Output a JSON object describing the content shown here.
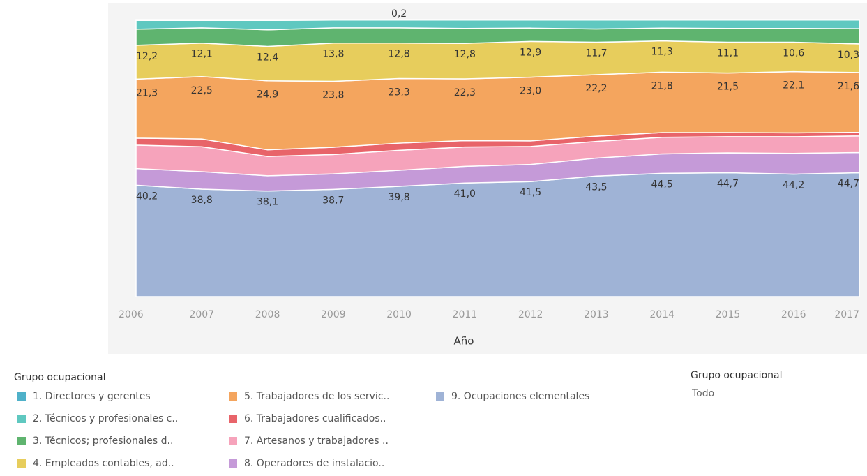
{
  "chart_data": {
    "type": "stacked_area",
    "x_label": "Año",
    "categories": [
      "2006",
      "2007",
      "2008",
      "2009",
      "2010",
      "2011",
      "2012",
      "2013",
      "2014",
      "2015",
      "2016",
      "2017"
    ],
    "legend_title": "Grupo ocupacional",
    "series": [
      {
        "name": "9. Ocupaciones elementales",
        "color": "#9fb3d6",
        "values": [
          40.2,
          38.8,
          38.1,
          38.7,
          39.8,
          41.0,
          41.5,
          43.5,
          44.5,
          44.7,
          44.2,
          44.7
        ],
        "value_labels": [
          "40,2",
          "38,8",
          "38,1",
          "38,7",
          "39,8",
          "41,0",
          "41,5",
          "43,5",
          "44,5",
          "44,7",
          "44,2",
          "44,7"
        ]
      },
      {
        "name": "8. Operadores de instalacio..",
        "color": "#c59ad8",
        "values": [
          6.0,
          6.3,
          5.5,
          5.6,
          5.8,
          6.0,
          6.2,
          6.5,
          7.0,
          7.2,
          7.5,
          7.3
        ]
      },
      {
        "name": "7. Artesanos y trabajadores ..",
        "color": "#f6a3bb",
        "values": [
          8.5,
          9.0,
          7.0,
          7.0,
          7.2,
          7.0,
          6.5,
          6.0,
          6.0,
          5.8,
          6.0,
          6.0
        ]
      },
      {
        "name": "6. Trabajadores cualificados..",
        "color": "#e8646a",
        "values": [
          2.5,
          2.8,
          2.4,
          2.6,
          2.6,
          2.3,
          2.0,
          1.9,
          1.7,
          1.5,
          1.4,
          1.3
        ]
      },
      {
        "name": "5. Trabajadores de los servic..",
        "color": "#f4a55e",
        "values": [
          21.3,
          22.5,
          24.9,
          23.8,
          23.3,
          22.3,
          23.0,
          22.2,
          21.8,
          21.5,
          22.1,
          21.6
        ],
        "value_labels": [
          "21,3",
          "22,5",
          "24,9",
          "23,8",
          "23,3",
          "22,3",
          "23,0",
          "22,2",
          "21,8",
          "21,5",
          "22,1",
          "21,6"
        ]
      },
      {
        "name": "4. Empleados contables, ad..",
        "color": "#e7cd5c",
        "values": [
          12.2,
          12.1,
          12.4,
          13.8,
          12.8,
          12.8,
          12.9,
          11.7,
          11.3,
          11.1,
          10.6,
          10.3
        ],
        "value_labels": [
          "12,2",
          "12,1",
          "12,4",
          "13,8",
          "12,8",
          "12,8",
          "12,9",
          "11,7",
          "11,3",
          "11,1",
          "10,6",
          "10,3"
        ]
      },
      {
        "name": "3. Técnicos; profesionales d..",
        "color": "#5fb46f",
        "values": [
          5.8,
          5.5,
          6.0,
          5.5,
          5.5,
          5.4,
          4.8,
          4.8,
          4.6,
          5.0,
          5.0,
          5.5
        ]
      },
      {
        "name": "2. Técnicos y profesionales c..",
        "color": "#5fc8c0",
        "values": [
          3.2,
          2.7,
          3.4,
          2.8,
          2.8,
          3.0,
          2.9,
          3.2,
          2.9,
          3.0,
          3.0,
          3.1
        ]
      },
      {
        "name": "1. Directores y gerentes",
        "color": "#4fb1c9",
        "values": [
          0.3,
          0.3,
          0.3,
          0.2,
          0.2,
          0.2,
          0.2,
          0.2,
          0.2,
          0.2,
          0.2,
          0.2
        ],
        "value_labels": [
          null,
          null,
          null,
          null,
          "0,2",
          null,
          null,
          null,
          null,
          null,
          null,
          null
        ]
      }
    ],
    "legend_order": [
      8,
      7,
      6,
      5,
      4,
      3,
      2,
      1,
      0
    ],
    "filter": {
      "title": "Grupo ocupacional",
      "value": "Todo"
    }
  }
}
